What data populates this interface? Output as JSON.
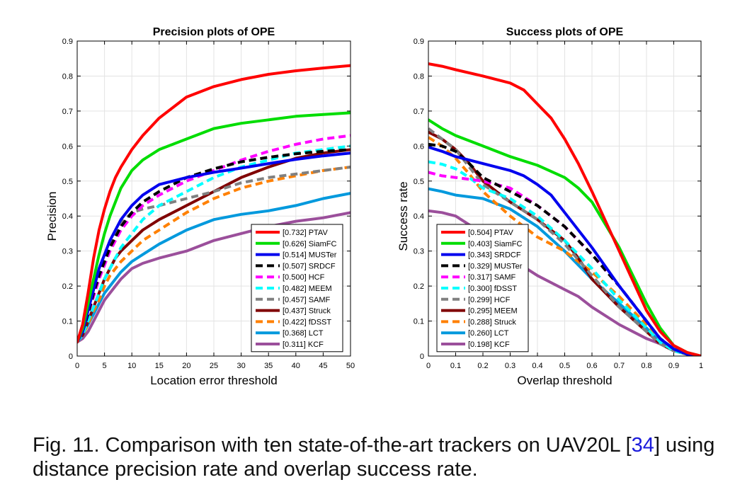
{
  "caption": {
    "prefix": "Fig. 11. Comparison with ten state-of-the-art trackers on UAV20L [",
    "ref": "34",
    "suffix": "] using distance precision rate and overlap success rate."
  },
  "chart_data": [
    {
      "type": "line",
      "title": "Precision plots of OPE",
      "xlabel": "Location error threshold",
      "ylabel": "Precision",
      "xlim": [
        0,
        50
      ],
      "ylim": [
        0,
        0.9
      ],
      "xticks": [
        0,
        5,
        10,
        15,
        20,
        25,
        30,
        35,
        40,
        45,
        50
      ],
      "xtick_labels": [
        "0",
        "5",
        "10",
        "15",
        "20",
        "25",
        "30",
        "35",
        "40",
        "45",
        "50"
      ],
      "yticks": [
        0,
        0.1,
        0.2,
        0.3,
        0.4,
        0.5,
        0.6,
        0.7,
        0.8,
        0.9
      ],
      "ytick_labels": [
        "0",
        "0.1",
        "0.2",
        "0.3",
        "0.4",
        "0.5",
        "0.6",
        "0.7",
        "0.8",
        "0.9"
      ],
      "grid": true,
      "legend_position": "bottom-right",
      "series": [
        {
          "name": "[0.732] PTAV",
          "color": "#ff0000",
          "dash": "solid",
          "x": [
            0,
            1,
            2,
            3,
            4,
            5,
            6,
            7,
            8,
            10,
            12,
            15,
            20,
            25,
            30,
            35,
            40,
            45,
            50
          ],
          "y": [
            0.04,
            0.09,
            0.18,
            0.28,
            0.36,
            0.42,
            0.47,
            0.51,
            0.54,
            0.59,
            0.63,
            0.68,
            0.74,
            0.77,
            0.79,
            0.805,
            0.815,
            0.823,
            0.83
          ]
        },
        {
          "name": "[0.626] SiamFC",
          "color": "#00dd00",
          "dash": "solid",
          "x": [
            0,
            1,
            2,
            3,
            4,
            5,
            6,
            7,
            8,
            10,
            12,
            15,
            20,
            25,
            30,
            35,
            40,
            45,
            50
          ],
          "y": [
            0.04,
            0.08,
            0.15,
            0.22,
            0.29,
            0.35,
            0.4,
            0.44,
            0.48,
            0.53,
            0.56,
            0.59,
            0.62,
            0.65,
            0.665,
            0.675,
            0.685,
            0.69,
            0.695
          ]
        },
        {
          "name": "[0.514] MUSTer",
          "color": "#0000ee",
          "dash": "solid",
          "x": [
            0,
            1,
            2,
            3,
            4,
            5,
            6,
            7,
            8,
            10,
            12,
            15,
            20,
            25,
            30,
            35,
            40,
            45,
            50
          ],
          "y": [
            0.04,
            0.07,
            0.13,
            0.19,
            0.25,
            0.29,
            0.33,
            0.36,
            0.39,
            0.43,
            0.46,
            0.49,
            0.51,
            0.525,
            0.537,
            0.55,
            0.562,
            0.572,
            0.58
          ]
        },
        {
          "name": "[0.507] SRDCF",
          "color": "#000000",
          "dash": "10,6",
          "x": [
            0,
            1,
            2,
            3,
            4,
            5,
            6,
            7,
            8,
            10,
            12,
            15,
            20,
            25,
            30,
            35,
            40,
            45,
            50
          ],
          "y": [
            0.04,
            0.07,
            0.12,
            0.18,
            0.23,
            0.27,
            0.31,
            0.34,
            0.37,
            0.41,
            0.44,
            0.47,
            0.51,
            0.535,
            0.555,
            0.568,
            0.578,
            0.585,
            0.59
          ]
        },
        {
          "name": "[0.500] HCF",
          "color": "#ff00ff",
          "dash": "10,6",
          "x": [
            0,
            1,
            2,
            3,
            4,
            5,
            6,
            7,
            8,
            10,
            12,
            15,
            20,
            25,
            30,
            35,
            40,
            45,
            50
          ],
          "y": [
            0.04,
            0.07,
            0.12,
            0.17,
            0.22,
            0.26,
            0.3,
            0.33,
            0.36,
            0.4,
            0.43,
            0.46,
            0.5,
            0.53,
            0.56,
            0.585,
            0.605,
            0.62,
            0.63
          ]
        },
        {
          "name": "[0.482] MEEM",
          "color": "#00ffff",
          "dash": "10,6",
          "x": [
            0,
            1,
            2,
            3,
            4,
            5,
            6,
            7,
            8,
            10,
            12,
            15,
            20,
            25,
            30,
            35,
            40,
            45,
            50
          ],
          "y": [
            0.04,
            0.06,
            0.1,
            0.14,
            0.18,
            0.22,
            0.25,
            0.28,
            0.31,
            0.35,
            0.39,
            0.43,
            0.47,
            0.51,
            0.54,
            0.56,
            0.58,
            0.59,
            0.6
          ]
        },
        {
          "name": "[0.457] SAMF",
          "color": "#808080",
          "dash": "10,6",
          "x": [
            0,
            1,
            2,
            3,
            4,
            5,
            6,
            7,
            8,
            10,
            12,
            15,
            20,
            25,
            30,
            35,
            40,
            45,
            50
          ],
          "y": [
            0.04,
            0.08,
            0.14,
            0.2,
            0.25,
            0.29,
            0.32,
            0.35,
            0.38,
            0.41,
            0.42,
            0.43,
            0.45,
            0.47,
            0.495,
            0.51,
            0.52,
            0.53,
            0.54
          ]
        },
        {
          "name": "[0.437] Struck",
          "color": "#800000",
          "dash": "solid",
          "x": [
            0,
            1,
            2,
            3,
            4,
            5,
            6,
            7,
            8,
            10,
            12,
            15,
            20,
            25,
            30,
            35,
            40,
            45,
            50
          ],
          "y": [
            0.04,
            0.06,
            0.1,
            0.14,
            0.18,
            0.22,
            0.25,
            0.28,
            0.3,
            0.33,
            0.36,
            0.39,
            0.43,
            0.47,
            0.51,
            0.54,
            0.565,
            0.58,
            0.59
          ]
        },
        {
          "name": "[0.422] fDSST",
          "color": "#ff8000",
          "dash": "10,6",
          "x": [
            0,
            1,
            2,
            3,
            4,
            5,
            6,
            7,
            8,
            10,
            12,
            15,
            20,
            25,
            30,
            35,
            40,
            45,
            50
          ],
          "y": [
            0.04,
            0.06,
            0.09,
            0.13,
            0.16,
            0.2,
            0.23,
            0.25,
            0.27,
            0.3,
            0.33,
            0.36,
            0.41,
            0.45,
            0.48,
            0.5,
            0.515,
            0.53,
            0.54
          ]
        },
        {
          "name": "[0.368] LCT",
          "color": "#0099dd",
          "dash": "solid",
          "x": [
            0,
            1,
            2,
            3,
            4,
            5,
            6,
            7,
            8,
            10,
            12,
            15,
            20,
            25,
            30,
            35,
            40,
            45,
            50
          ],
          "y": [
            0.04,
            0.06,
            0.09,
            0.12,
            0.15,
            0.18,
            0.2,
            0.22,
            0.24,
            0.27,
            0.29,
            0.32,
            0.36,
            0.39,
            0.405,
            0.415,
            0.43,
            0.45,
            0.465
          ]
        },
        {
          "name": "[0.311] KCF",
          "color": "#9b4f9b",
          "dash": "solid",
          "x": [
            0,
            1,
            2,
            3,
            4,
            5,
            6,
            7,
            8,
            10,
            12,
            15,
            20,
            25,
            30,
            35,
            40,
            45,
            50
          ],
          "y": [
            0.04,
            0.05,
            0.07,
            0.1,
            0.13,
            0.16,
            0.18,
            0.2,
            0.22,
            0.25,
            0.265,
            0.28,
            0.3,
            0.33,
            0.35,
            0.37,
            0.385,
            0.395,
            0.41
          ]
        }
      ]
    },
    {
      "type": "line",
      "title": "Success plots of OPE",
      "xlabel": "Overlap threshold",
      "ylabel": "Success rate",
      "xlim": [
        0,
        1
      ],
      "ylim": [
        0,
        0.9
      ],
      "xticks": [
        0,
        0.1,
        0.2,
        0.3,
        0.4,
        0.5,
        0.6,
        0.7,
        0.8,
        0.9,
        1
      ],
      "xtick_labels": [
        "0",
        "0.1",
        "0.2",
        "0.3",
        "0.4",
        "0.5",
        "0.6",
        "0.7",
        "0.8",
        "0.9",
        "1"
      ],
      "yticks": [
        0,
        0.1,
        0.2,
        0.3,
        0.4,
        0.5,
        0.6,
        0.7,
        0.8,
        0.9
      ],
      "ytick_labels": [
        "0",
        "0.1",
        "0.2",
        "0.3",
        "0.4",
        "0.5",
        "0.6",
        "0.7",
        "0.8",
        "0.9"
      ],
      "grid": true,
      "legend_position": "bottom-left",
      "series": [
        {
          "name": "[0.504] PTAV",
          "color": "#ff0000",
          "dash": "solid",
          "x": [
            0,
            0.05,
            0.1,
            0.2,
            0.3,
            0.35,
            0.4,
            0.45,
            0.5,
            0.55,
            0.6,
            0.7,
            0.8,
            0.85,
            0.9,
            0.95,
            1
          ],
          "y": [
            0.835,
            0.828,
            0.818,
            0.8,
            0.78,
            0.76,
            0.72,
            0.68,
            0.62,
            0.55,
            0.47,
            0.3,
            0.13,
            0.07,
            0.03,
            0.01,
            0
          ]
        },
        {
          "name": "[0.403] SiamFC",
          "color": "#00dd00",
          "dash": "solid",
          "x": [
            0,
            0.05,
            0.1,
            0.2,
            0.3,
            0.4,
            0.5,
            0.55,
            0.6,
            0.7,
            0.8,
            0.85,
            0.9,
            0.95,
            1
          ],
          "y": [
            0.675,
            0.65,
            0.63,
            0.6,
            0.57,
            0.545,
            0.51,
            0.48,
            0.44,
            0.31,
            0.15,
            0.08,
            0.03,
            0.01,
            0
          ]
        },
        {
          "name": "[0.343] SRDCF",
          "color": "#0000ee",
          "dash": "solid",
          "x": [
            0,
            0.05,
            0.1,
            0.2,
            0.3,
            0.35,
            0.4,
            0.45,
            0.5,
            0.6,
            0.7,
            0.8,
            0.85,
            0.9,
            0.95,
            1
          ],
          "y": [
            0.597,
            0.585,
            0.57,
            0.55,
            0.53,
            0.515,
            0.49,
            0.46,
            0.41,
            0.31,
            0.2,
            0.1,
            0.05,
            0.02,
            0.005,
            0
          ]
        },
        {
          "name": "[0.329] MUSTer",
          "color": "#000000",
          "dash": "10,6",
          "x": [
            0,
            0.05,
            0.1,
            0.15,
            0.2,
            0.3,
            0.4,
            0.5,
            0.6,
            0.7,
            0.8,
            0.85,
            0.9,
            0.95,
            1
          ],
          "y": [
            0.605,
            0.6,
            0.585,
            0.55,
            0.51,
            0.47,
            0.43,
            0.37,
            0.29,
            0.2,
            0.1,
            0.05,
            0.02,
            0.005,
            0
          ]
        },
        {
          "name": "[0.317] SAMF",
          "color": "#ff00ff",
          "dash": "10,6",
          "x": [
            0,
            0.05,
            0.1,
            0.15,
            0.2,
            0.3,
            0.4,
            0.5,
            0.6,
            0.7,
            0.8,
            0.85,
            0.9,
            0.95,
            1
          ],
          "y": [
            0.525,
            0.515,
            0.51,
            0.505,
            0.5,
            0.48,
            0.43,
            0.37,
            0.29,
            0.2,
            0.1,
            0.05,
            0.02,
            0.005,
            0
          ]
        },
        {
          "name": "[0.300] fDSST",
          "color": "#00ffff",
          "dash": "10,6",
          "x": [
            0,
            0.05,
            0.1,
            0.15,
            0.2,
            0.3,
            0.4,
            0.5,
            0.6,
            0.7,
            0.8,
            0.85,
            0.9,
            0.95,
            1
          ],
          "y": [
            0.555,
            0.548,
            0.535,
            0.51,
            0.48,
            0.45,
            0.4,
            0.33,
            0.25,
            0.16,
            0.08,
            0.04,
            0.015,
            0.005,
            0
          ]
        },
        {
          "name": "[0.299] HCF",
          "color": "#808080",
          "dash": "10,6",
          "x": [
            0,
            0.05,
            0.1,
            0.15,
            0.2,
            0.3,
            0.4,
            0.5,
            0.6,
            0.7,
            0.8,
            0.85,
            0.9,
            0.95,
            1
          ],
          "y": [
            0.65,
            0.62,
            0.59,
            0.54,
            0.49,
            0.44,
            0.39,
            0.32,
            0.23,
            0.14,
            0.07,
            0.035,
            0.015,
            0.005,
            0
          ]
        },
        {
          "name": "[0.295] MEEM",
          "color": "#800000",
          "dash": "solid",
          "x": [
            0,
            0.05,
            0.1,
            0.15,
            0.2,
            0.3,
            0.4,
            0.5,
            0.55,
            0.6,
            0.7,
            0.8,
            0.85,
            0.9,
            0.95,
            1
          ],
          "y": [
            0.64,
            0.62,
            0.59,
            0.55,
            0.5,
            0.44,
            0.39,
            0.33,
            0.28,
            0.22,
            0.14,
            0.07,
            0.035,
            0.015,
            0.005,
            0
          ]
        },
        {
          "name": "[0.288] Struck",
          "color": "#ff8000",
          "dash": "10,6",
          "x": [
            0,
            0.05,
            0.1,
            0.15,
            0.2,
            0.3,
            0.4,
            0.5,
            0.6,
            0.7,
            0.8,
            0.85,
            0.9,
            0.95,
            1
          ],
          "y": [
            0.625,
            0.6,
            0.565,
            0.52,
            0.47,
            0.4,
            0.34,
            0.3,
            0.24,
            0.17,
            0.09,
            0.05,
            0.02,
            0.005,
            0
          ]
        },
        {
          "name": "[0.260] LCT",
          "color": "#0099dd",
          "dash": "solid",
          "x": [
            0,
            0.05,
            0.1,
            0.2,
            0.3,
            0.4,
            0.5,
            0.6,
            0.7,
            0.8,
            0.85,
            0.9,
            0.95,
            1
          ],
          "y": [
            0.478,
            0.47,
            0.46,
            0.45,
            0.42,
            0.37,
            0.3,
            0.22,
            0.15,
            0.08,
            0.04,
            0.015,
            0.005,
            0
          ]
        },
        {
          "name": "[0.198] KCF",
          "color": "#9b4f9b",
          "dash": "solid",
          "x": [
            0,
            0.05,
            0.1,
            0.2,
            0.3,
            0.4,
            0.5,
            0.55,
            0.6,
            0.7,
            0.8,
            0.9,
            0.95,
            1
          ],
          "y": [
            0.415,
            0.41,
            0.4,
            0.35,
            0.28,
            0.23,
            0.19,
            0.17,
            0.14,
            0.09,
            0.05,
            0.02,
            0.005,
            0
          ]
        }
      ]
    }
  ]
}
